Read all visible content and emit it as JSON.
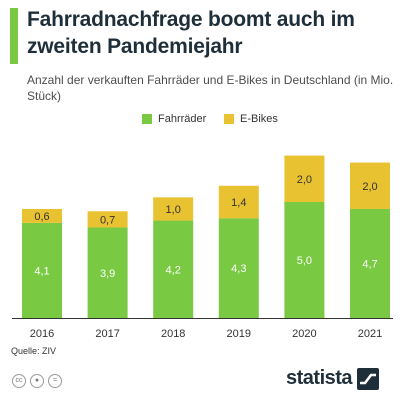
{
  "header": {
    "title": "Fahrradnachfrage boomt auch im zweiten Pandemiejahr",
    "subtitle": "Anzahl der verkauften Fahrräder und E-Bikes in Deutschland (in Mio. Stück)"
  },
  "footer": {
    "source": "Quelle: ZIV",
    "brand": "statista",
    "icons": [
      "cc-license-icon",
      "person-attribution-icon",
      "equals-noderivs-icon"
    ]
  },
  "colors": {
    "fahrraeder": "#7ac943",
    "ebikes": "#e8c230",
    "accent": "#7ac943",
    "label_fahrraeder": "#ffffff",
    "label_ebikes": "#333333"
  },
  "chart_data": {
    "type": "bar",
    "stacked": true,
    "categories": [
      "2016",
      "2017",
      "2018",
      "2019",
      "2020",
      "2021"
    ],
    "series": [
      {
        "name": "Fahrräder",
        "values": [
          4.1,
          3.9,
          4.2,
          4.3,
          5.0,
          4.7
        ],
        "labels": [
          "4,1",
          "3,9",
          "4,2",
          "4,3",
          "5,0",
          "4,7"
        ]
      },
      {
        "name": "E-Bikes",
        "values": [
          0.6,
          0.7,
          1.0,
          1.4,
          2.0,
          2.0
        ],
        "labels": [
          "0,6",
          "0,7",
          "1,0",
          "1,4",
          "2,0",
          "2,0"
        ]
      }
    ],
    "legend_position": "top-center",
    "grid": false,
    "ylim": [
      0,
      7
    ]
  }
}
